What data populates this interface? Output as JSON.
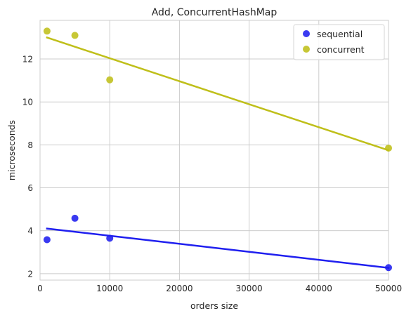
{
  "chart_data": {
    "type": "scatter",
    "title": "Add, ConcurrentHashMap",
    "xlabel": "orders size",
    "ylabel": "microseconds",
    "xlim": [
      0,
      50000
    ],
    "ylim": [
      1.7,
      13.8
    ],
    "xticks": [
      0,
      10000,
      20000,
      30000,
      40000,
      50000
    ],
    "xtick_labels": [
      "0",
      "10000",
      "20000",
      "30000",
      "40000",
      "50000"
    ],
    "yticks": [
      2,
      4,
      6,
      8,
      10,
      12
    ],
    "ytick_labels": [
      "2",
      "4",
      "6",
      "8",
      "10",
      "12"
    ],
    "grid": true,
    "legend_position": "top-right",
    "series": [
      {
        "name": "sequential",
        "color": "#1f1fef",
        "x": [
          1000,
          5000,
          10000,
          50000
        ],
        "y": [
          3.58,
          4.58,
          3.65,
          2.28
        ],
        "fit": {
          "x": [
            1000,
            50000
          ],
          "y": [
            4.1,
            2.27
          ]
        }
      },
      {
        "name": "concurrent",
        "color": "#bfbf1a",
        "x": [
          1000,
          5000,
          10000,
          50000
        ],
        "y": [
          13.3,
          13.1,
          11.03,
          7.85
        ],
        "fit": {
          "x": [
            1000,
            50000
          ],
          "y": [
            13.0,
            7.75
          ]
        }
      }
    ]
  }
}
